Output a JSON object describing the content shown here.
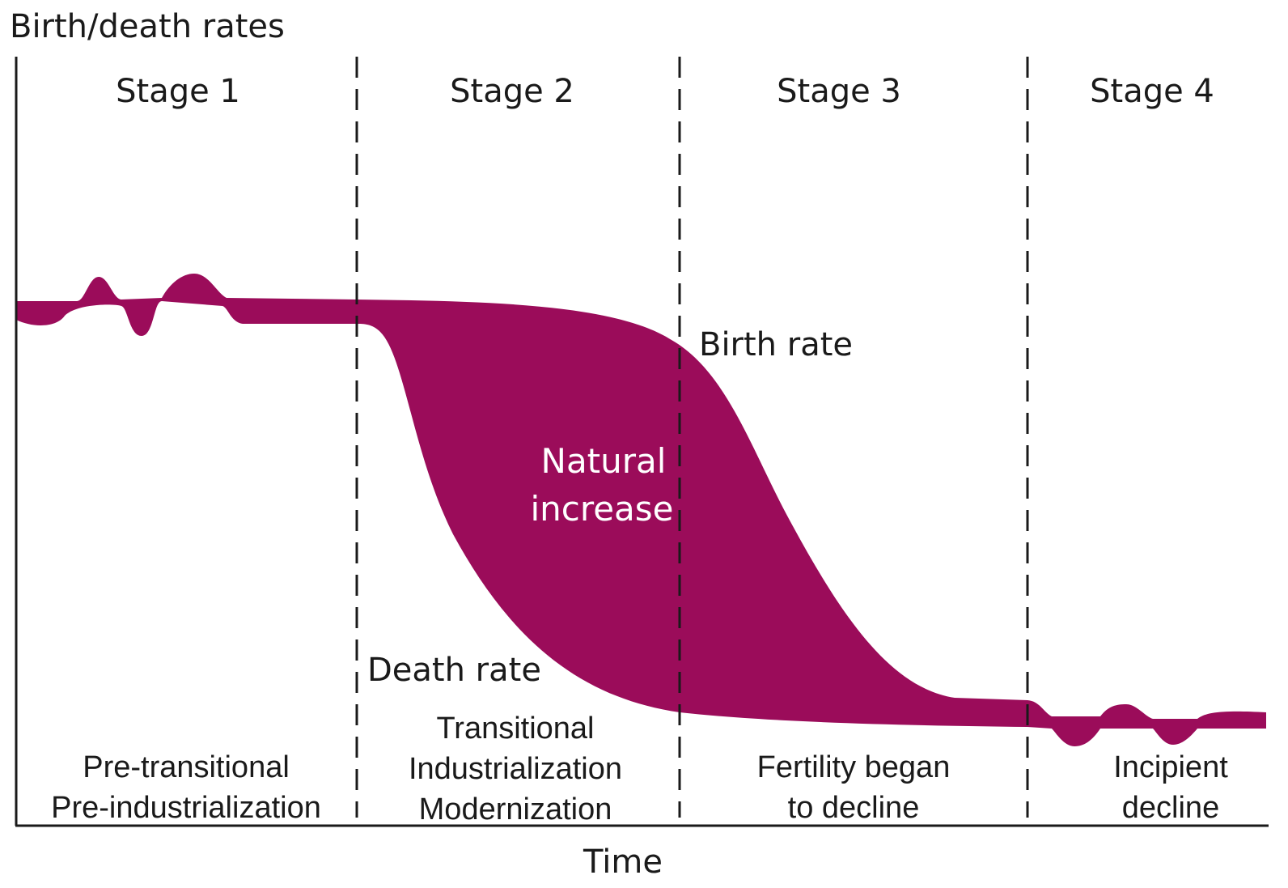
{
  "y_axis_label": "Birth/death rates",
  "x_axis_label": "Time",
  "stages": [
    {
      "title": "Stage 1",
      "description": [
        "Pre-transitional",
        "Pre-industrialization"
      ]
    },
    {
      "title": "Stage 2",
      "description": [
        "Transitional",
        "Industrialization",
        "Modernization"
      ]
    },
    {
      "title": "Stage 3",
      "description": [
        "Fertility began",
        "to decline"
      ]
    },
    {
      "title": "Stage 4",
      "description": [
        "Incipient",
        "decline"
      ]
    }
  ],
  "curve_labels": {
    "birth_rate": "Birth rate",
    "death_rate": "Death rate",
    "natural_increase": [
      "Natural",
      "increase"
    ]
  }
}
